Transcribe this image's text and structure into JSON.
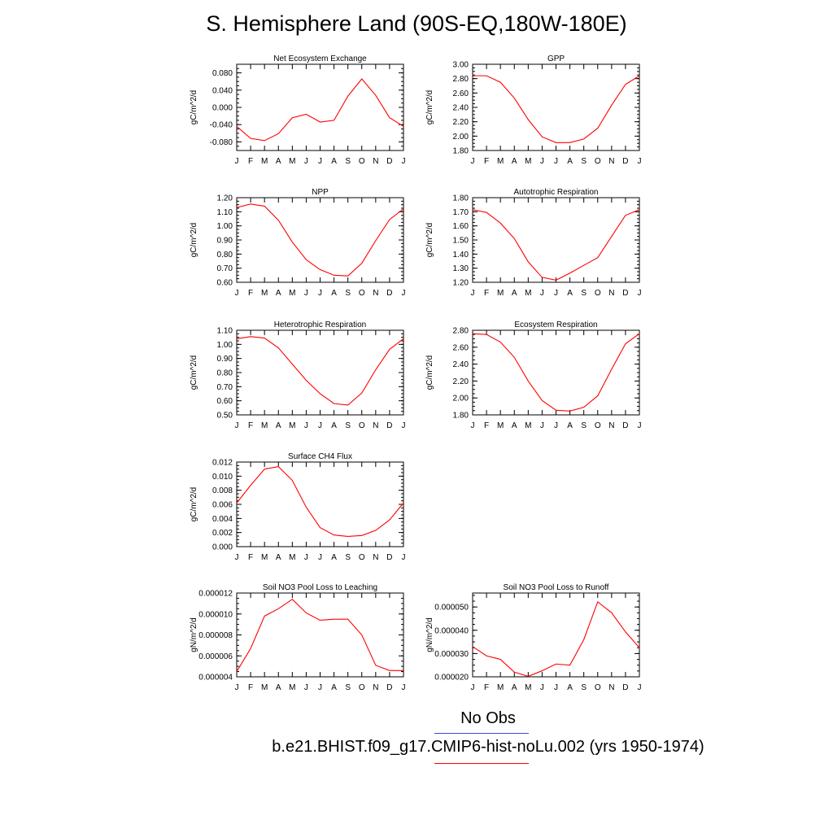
{
  "title": "S. Hemisphere Land (90S-EQ,180W-180E)",
  "month_labels": [
    "J",
    "F",
    "M",
    "A",
    "M",
    "J",
    "J",
    "A",
    "S",
    "O",
    "N",
    "D",
    "J"
  ],
  "legend": {
    "obs_label": "No Obs",
    "obs_color": "#3b4cd8",
    "case_label": "b.e21.BHIST.f09_g17.CMIP6-hist-noLu.002 (yrs 1950-1974)",
    "case_color": "#ff0000"
  },
  "chart_data": [
    {
      "type": "line",
      "title": "Net Ecosystem Exchange",
      "ylabel": "gC/m^2/d",
      "ylim": [
        -0.1,
        0.1
      ],
      "yticks": [
        "0.080",
        "0.040",
        "0.000",
        "-0.040",
        "-0.080"
      ],
      "ytick_values": [
        0.08,
        0.04,
        0.0,
        -0.04,
        -0.08
      ],
      "values": [
        -0.044,
        -0.072,
        -0.077,
        -0.061,
        -0.024,
        -0.016,
        -0.034,
        -0.03,
        0.026,
        0.066,
        0.028,
        -0.024,
        -0.044
      ]
    },
    {
      "type": "line",
      "title": "GPP",
      "ylabel": "gC/m^2/d",
      "ylim": [
        1.8,
        3.0
      ],
      "yticks": [
        "3.00",
        "2.80",
        "2.60",
        "2.40",
        "2.20",
        "2.00",
        "1.80"
      ],
      "ytick_values": [
        3.0,
        2.8,
        2.6,
        2.4,
        2.2,
        2.0,
        1.8
      ],
      "values": [
        2.84,
        2.84,
        2.75,
        2.53,
        2.23,
        1.99,
        1.91,
        1.91,
        1.96,
        2.11,
        2.43,
        2.72,
        2.84
      ]
    },
    {
      "type": "line",
      "title": "NPP",
      "ylabel": "gC/m^2/d",
      "ylim": [
        0.6,
        1.2
      ],
      "yticks": [
        "1.20",
        "1.10",
        "1.00",
        "0.90",
        "0.80",
        "0.70",
        "0.60"
      ],
      "ytick_values": [
        1.2,
        1.1,
        1.0,
        0.9,
        0.8,
        0.7,
        0.6
      ],
      "values": [
        1.13,
        1.155,
        1.14,
        1.04,
        0.885,
        0.76,
        0.69,
        0.65,
        0.645,
        0.735,
        0.895,
        1.045,
        1.12
      ]
    },
    {
      "type": "line",
      "title": "Autotrophic Respiration",
      "ylabel": "gC/m^2/d",
      "ylim": [
        1.2,
        1.8
      ],
      "yticks": [
        "1.80",
        "1.70",
        "1.60",
        "1.50",
        "1.40",
        "1.30",
        "1.20"
      ],
      "ytick_values": [
        1.8,
        1.7,
        1.6,
        1.5,
        1.4,
        1.3,
        1.2
      ],
      "values": [
        1.715,
        1.695,
        1.62,
        1.51,
        1.345,
        1.235,
        1.215,
        1.265,
        1.32,
        1.375,
        1.525,
        1.675,
        1.715
      ]
    },
    {
      "type": "line",
      "title": "Heterotrophic Respiration",
      "ylabel": "gC/m^2/d",
      "ylim": [
        0.5,
        1.1
      ],
      "yticks": [
        "1.10",
        "1.00",
        "0.90",
        "0.80",
        "0.70",
        "0.60",
        "0.50"
      ],
      "ytick_values": [
        1.1,
        1.0,
        0.9,
        0.8,
        0.7,
        0.6,
        0.5
      ],
      "values": [
        1.04,
        1.055,
        1.045,
        0.975,
        0.86,
        0.745,
        0.65,
        0.58,
        0.57,
        0.655,
        0.82,
        0.965,
        1.04
      ]
    },
    {
      "type": "line",
      "title": "Ecosystem Respiration",
      "ylabel": "gC/m^2/d",
      "ylim": [
        1.8,
        2.8
      ],
      "yticks": [
        "2.80",
        "2.60",
        "2.40",
        "2.20",
        "2.00",
        "1.80"
      ],
      "ytick_values": [
        2.8,
        2.6,
        2.4,
        2.2,
        2.0,
        1.8
      ],
      "values": [
        2.76,
        2.75,
        2.66,
        2.48,
        2.2,
        1.97,
        1.855,
        1.845,
        1.89,
        2.025,
        2.34,
        2.64,
        2.76
      ]
    },
    {
      "type": "line",
      "title": "Surface CH4 Flux",
      "ylabel": "gC/m^2/d",
      "ylim": [
        0.0,
        0.012
      ],
      "yticks": [
        "0.012",
        "0.010",
        "0.008",
        "0.006",
        "0.004",
        "0.002",
        "0.000"
      ],
      "ytick_values": [
        0.012,
        0.01,
        0.008,
        0.006,
        0.004,
        0.002,
        0.0
      ],
      "values": [
        0.0062,
        0.0087,
        0.011,
        0.01135,
        0.0094,
        0.0056,
        0.0027,
        0.00165,
        0.00145,
        0.00158,
        0.0023,
        0.0038,
        0.0062
      ]
    },
    {
      "type": "line",
      "title": "Soil NO3 Pool Loss to Leaching",
      "ylabel": "gN/m^2/d",
      "ylim": [
        4e-06,
        1.2e-05
      ],
      "yticks": [
        "0.000012",
        "0.000010",
        "0.000008",
        "0.000006",
        "0.000004"
      ],
      "ytick_values": [
        1.2e-05,
        1e-05,
        8e-06,
        6e-06,
        4e-06
      ],
      "values": [
        4.5e-06,
        6.7e-06,
        9.8e-06,
        1.05e-05,
        1.14e-05,
        1.01e-05,
        9.4e-06,
        9.5e-06,
        9.5e-06,
        8e-06,
        5.1e-06,
        4.6e-06,
        4.6e-06
      ]
    },
    {
      "type": "line",
      "title": "Soil NO3 Pool Loss to Runoff",
      "ylabel": "gN/m^2/d",
      "ylim": [
        2e-05,
        5.6e-05
      ],
      "yticks": [
        "0.000050",
        "0.000040",
        "0.000030",
        "0.000020"
      ],
      "ytick_values": [
        5e-05,
        4e-05,
        3e-05,
        2e-05
      ],
      "values": [
        3.3e-05,
        2.9e-05,
        2.75e-05,
        2.2e-05,
        2.02e-05,
        2.26e-05,
        2.55e-05,
        2.5e-05,
        3.6e-05,
        5.22e-05,
        4.75e-05,
        3.93e-05,
        3.25e-05
      ]
    }
  ]
}
